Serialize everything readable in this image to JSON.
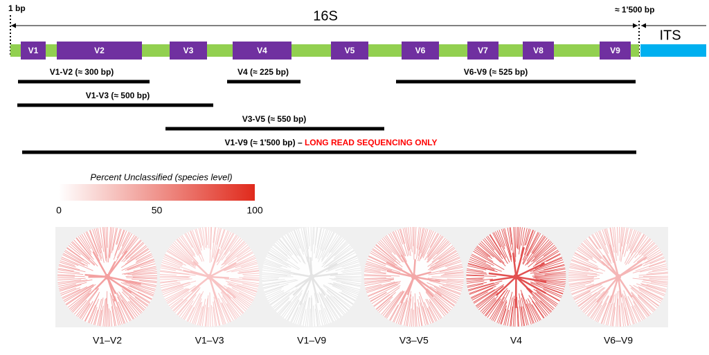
{
  "header": {
    "start": "1 bp",
    "gene": "16S",
    "end": "≈ 1'500 bp",
    "its": "ITS"
  },
  "regions": [
    "V1",
    "V2",
    "V3",
    "V4",
    "V5",
    "V6",
    "V7",
    "V8",
    "V9"
  ],
  "amplicons": [
    {
      "label": "V1-V2 (≈ 300 bp)"
    },
    {
      "label": "V4 (≈ 225 bp)"
    },
    {
      "label": "V6-V9 (≈ 525 bp)"
    },
    {
      "label": "V1-V3 (≈ 500 bp)"
    },
    {
      "label": "V3-V5 (≈ 550 bp)"
    },
    {
      "label": "V1-V9 (≈ 1'500 bp) – ",
      "note": "LONG READ SEQUENCING ONLY"
    }
  ],
  "colorbar": {
    "title": "Percent Unclassified (species level)",
    "range": [
      0,
      100
    ],
    "ticks": [
      0,
      50,
      100
    ]
  },
  "trees": [
    {
      "label": "V1–V2",
      "color": "#f3a0a0"
    },
    {
      "label": "V1–V3",
      "color": "#f8c4c4"
    },
    {
      "label": "V1–V9",
      "color": "#e4e4e4"
    },
    {
      "label": "V3–V5",
      "color": "#f3a8a8"
    },
    {
      "label": "V4",
      "color": "#e25050"
    },
    {
      "label": "V6–V9",
      "color": "#f5b6b6"
    }
  ]
}
